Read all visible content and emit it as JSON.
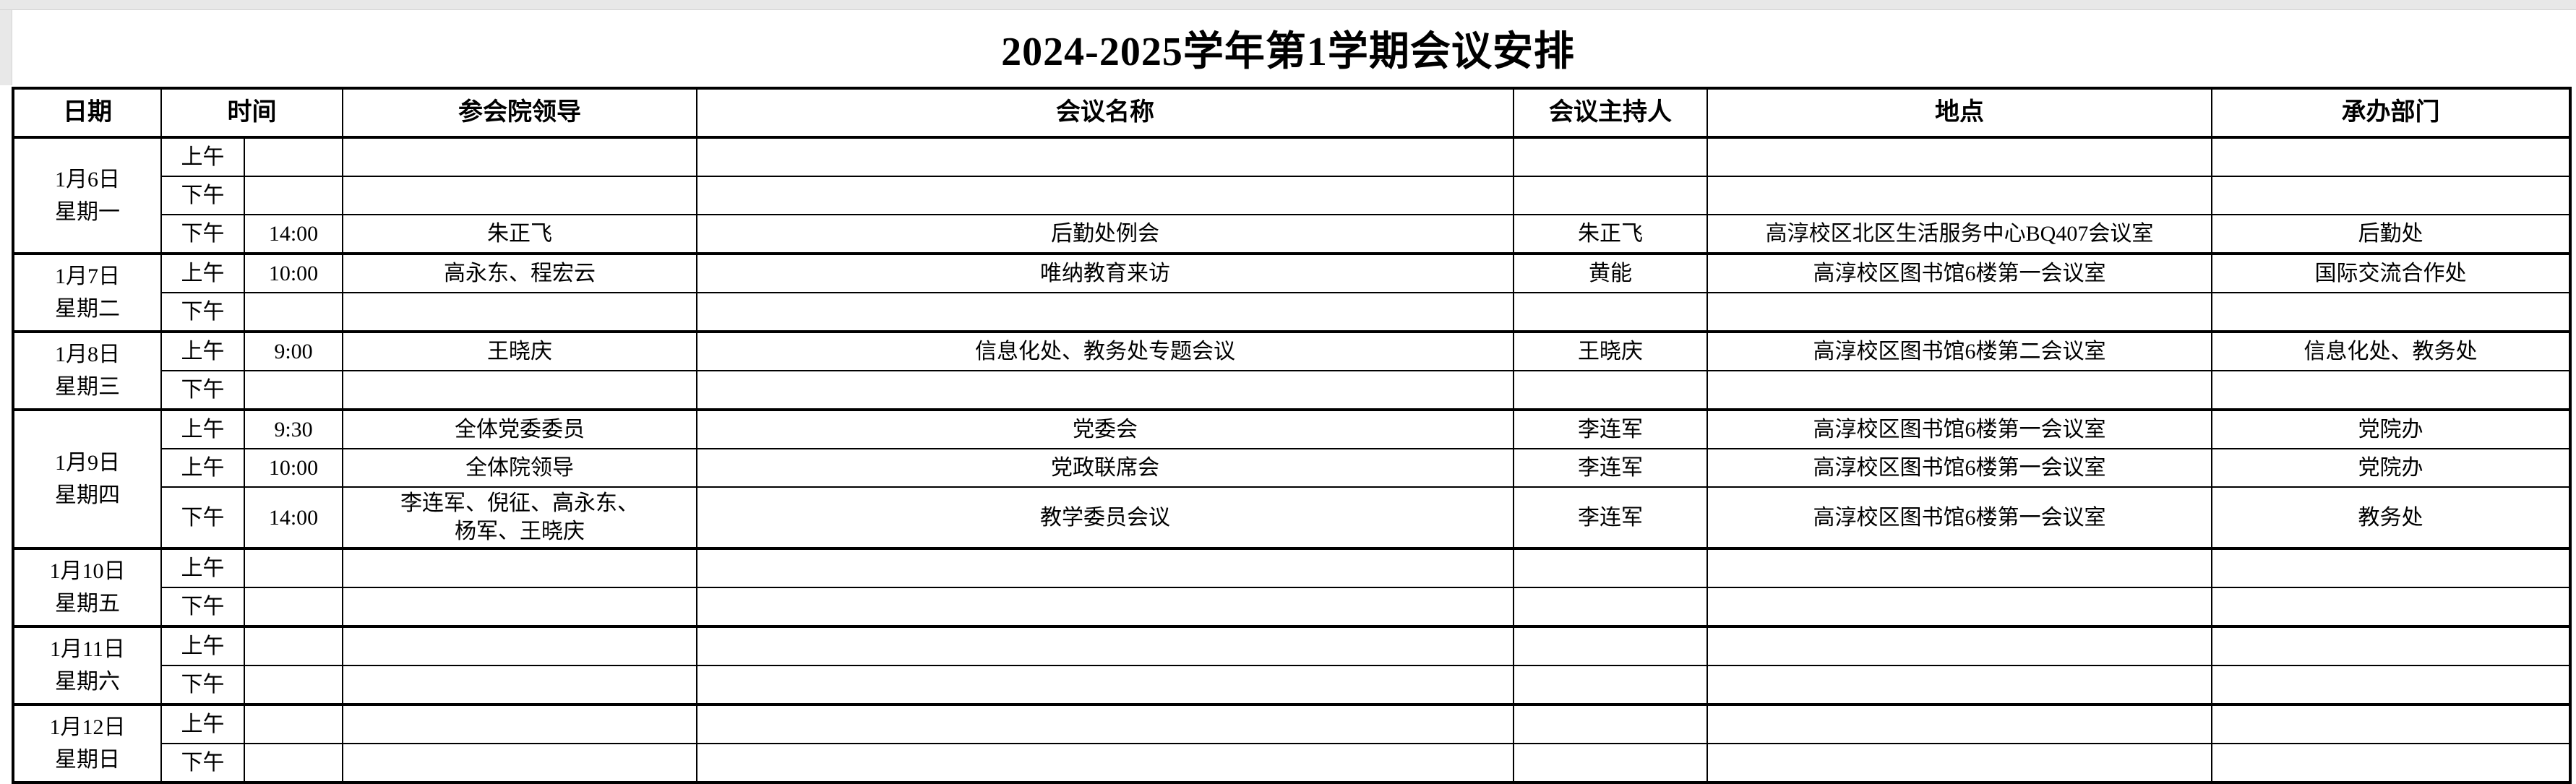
{
  "page": {
    "title": "2024-2025学年第1学期会议安排"
  },
  "table": {
    "headers": {
      "date": "日期",
      "time": "时间",
      "leaders": "参会院领导",
      "name": "会议名称",
      "host": "会议主持人",
      "location": "地点",
      "department": "承办部门"
    },
    "groups": [
      {
        "date": "1月6日",
        "weekday": "星期一",
        "rows": [
          {
            "ampm": "上午",
            "time": "",
            "leaders": "",
            "name": "",
            "host": "",
            "location": "",
            "department": ""
          },
          {
            "ampm": "下午",
            "time": "",
            "leaders": "",
            "name": "",
            "host": "",
            "location": "",
            "department": ""
          },
          {
            "ampm": "下午",
            "time": "14:00",
            "leaders": "朱正飞",
            "name": "后勤处例会",
            "host": "朱正飞",
            "location": "高淳校区北区生活服务中心BQ407会议室",
            "department": "后勤处"
          }
        ]
      },
      {
        "date": "1月7日",
        "weekday": "星期二",
        "rows": [
          {
            "ampm": "上午",
            "time": "10:00",
            "leaders": "高永东、程宏云",
            "name": "唯纳教育来访",
            "host": "黄能",
            "location": "高淳校区图书馆6楼第一会议室",
            "department": "国际交流合作处"
          },
          {
            "ampm": "下午",
            "time": "",
            "leaders": "",
            "name": "",
            "host": "",
            "location": "",
            "department": ""
          }
        ]
      },
      {
        "date": "1月8日",
        "weekday": "星期三",
        "rows": [
          {
            "ampm": "上午",
            "time": "9:00",
            "leaders": "王晓庆",
            "name": "信息化处、教务处专题会议",
            "host": "王晓庆",
            "location": "高淳校区图书馆6楼第二会议室",
            "department": "信息化处、教务处"
          },
          {
            "ampm": "下午",
            "time": "",
            "leaders": "",
            "name": "",
            "host": "",
            "location": "",
            "department": ""
          }
        ]
      },
      {
        "date": "1月9日",
        "weekday": "星期四",
        "rows": [
          {
            "ampm": "上午",
            "time": "9:30",
            "leaders": "全体党委委员",
            "name": "党委会",
            "host": "李连军",
            "location": "高淳校区图书馆6楼第一会议室",
            "department": "党院办"
          },
          {
            "ampm": "上午",
            "time": "10:00",
            "leaders": "全体院领导",
            "name": "党政联席会",
            "host": "李连军",
            "location": "高淳校区图书馆6楼第一会议室",
            "department": "党院办"
          },
          {
            "ampm": "下午",
            "time": "14:00",
            "leaders": "李连军、倪征、高永东、\n杨军、王晓庆",
            "name": "教学委员会议",
            "host": "李连军",
            "location": "高淳校区图书馆6楼第一会议室",
            "department": "教务处"
          }
        ]
      },
      {
        "date": "1月10日",
        "weekday": "星期五",
        "rows": [
          {
            "ampm": "上午",
            "time": "",
            "leaders": "",
            "name": "",
            "host": "",
            "location": "",
            "department": ""
          },
          {
            "ampm": "下午",
            "time": "",
            "leaders": "",
            "name": "",
            "host": "",
            "location": "",
            "department": ""
          }
        ]
      },
      {
        "date": "1月11日",
        "weekday": "星期六",
        "rows": [
          {
            "ampm": "上午",
            "time": "",
            "leaders": "",
            "name": "",
            "host": "",
            "location": "",
            "department": ""
          },
          {
            "ampm": "下午",
            "time": "",
            "leaders": "",
            "name": "",
            "host": "",
            "location": "",
            "department": ""
          }
        ]
      },
      {
        "date": "1月12日",
        "weekday": "星期日",
        "rows": [
          {
            "ampm": "上午",
            "time": "",
            "leaders": "",
            "name": "",
            "host": "",
            "location": "",
            "department": ""
          },
          {
            "ampm": "下午",
            "time": "",
            "leaders": "",
            "name": "",
            "host": "",
            "location": "",
            "department": ""
          }
        ]
      }
    ]
  }
}
